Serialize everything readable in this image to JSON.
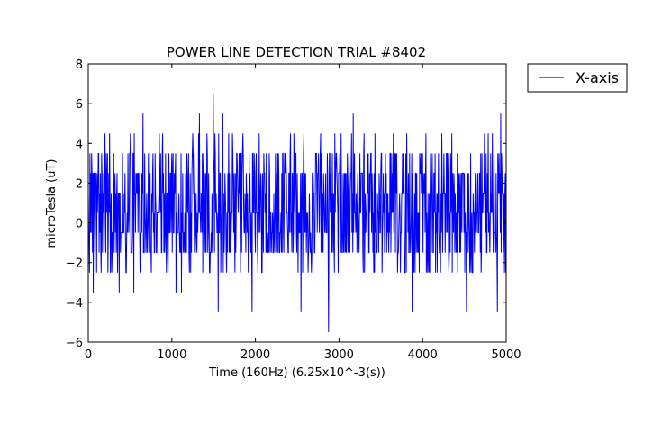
{
  "chart_data": {
    "type": "line",
    "title": "POWER LINE DETECTION TRIAL #8402",
    "xlabel": "Time (160Hz) (6.25x10^-3(s))",
    "ylabel": "microTesla (uT)",
    "xlim": [
      0,
      5000
    ],
    "ylim": [
      -6,
      8
    ],
    "xticks": [
      0,
      1000,
      2000,
      3000,
      4000,
      5000
    ],
    "xtick_labels": [
      "0",
      "1000",
      "2000",
      "3000",
      "4000",
      "5000"
    ],
    "yticks": [
      -6,
      -4,
      -2,
      0,
      2,
      4,
      6,
      8
    ],
    "ytick_labels": [
      "−6",
      "−4",
      "−2",
      "0",
      "2",
      "4",
      "6",
      "8"
    ],
    "grid": false,
    "legend_position": "outside-top-right",
    "series": [
      {
        "name": "X-axis",
        "color": "#0000ff",
        "quantization_uT": 1.0,
        "common_min": -1.5,
        "common_max": 2.5,
        "frequent_high": 3.5,
        "frequent_low": -2.5,
        "extreme_points": [
          {
            "x": 60,
            "y": -3.5
          },
          {
            "x": 370,
            "y": -3.5
          },
          {
            "x": 545,
            "y": -3.5
          },
          {
            "x": 655,
            "y": 5.5
          },
          {
            "x": 1050,
            "y": -3.5
          },
          {
            "x": 1115,
            "y": -3.5
          },
          {
            "x": 1330,
            "y": 5.5
          },
          {
            "x": 1495,
            "y": 6.5
          },
          {
            "x": 1555,
            "y": -4.5
          },
          {
            "x": 1610,
            "y": 5.5
          },
          {
            "x": 1960,
            "y": -4.5
          },
          {
            "x": 2545,
            "y": -4.5
          },
          {
            "x": 2875,
            "y": -5.5
          },
          {
            "x": 3170,
            "y": 5.5
          },
          {
            "x": 3875,
            "y": -4.5
          },
          {
            "x": 4525,
            "y": -4.5
          },
          {
            "x": 4895,
            "y": -4.5
          },
          {
            "x": 4935,
            "y": 5.5
          }
        ],
        "high_points_4_5": [
          200,
          255,
          505,
          550,
          850,
          890,
          1250,
          1320,
          1420,
          1515,
          1560,
          1680,
          1725,
          1850,
          2045,
          2420,
          2460,
          2580,
          2780,
          2950,
          3025,
          3150,
          3300,
          3430,
          3650,
          3810,
          4040,
          4230,
          4350,
          4740,
          4785,
          4835
        ]
      }
    ]
  }
}
